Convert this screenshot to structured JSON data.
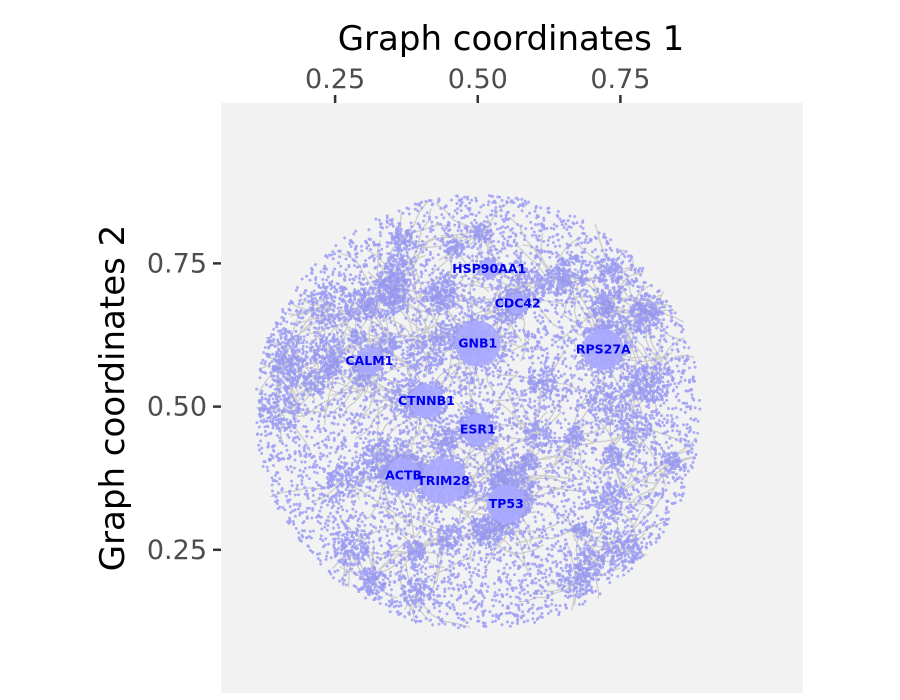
{
  "chart_data": {
    "type": "scatter",
    "title": "",
    "xlabel": "Graph coordinates 1",
    "ylabel": "Graph coordinates 2",
    "xlim": [
      0.05,
      1.07
    ],
    "ylim": [
      0.0,
      1.03
    ],
    "x_ticks": [
      {
        "value": 0.25,
        "label": "0.25"
      },
      {
        "value": 0.5,
        "label": "0.50"
      },
      {
        "value": 0.75,
        "label": "0.75"
      }
    ],
    "y_ticks": [
      {
        "value": 0.25,
        "label": "0.25"
      },
      {
        "value": 0.5,
        "label": "0.50"
      },
      {
        "value": 0.75,
        "label": "0.75"
      }
    ],
    "x_axis_position": "top",
    "grid": false,
    "panel_color": "#f2f2f2",
    "node_color": "#aaaaff",
    "edge_color": "#cccccc",
    "label_color": "#0000ee",
    "hub_nodes": [
      {
        "name": "GNB1",
        "x": 0.5,
        "y": 0.61,
        "size": 0.04
      },
      {
        "name": "HSP90AA1",
        "x": 0.52,
        "y": 0.74,
        "size": 0.016
      },
      {
        "name": "CDC42",
        "x": 0.57,
        "y": 0.68,
        "size": 0.018
      },
      {
        "name": "RPS27A",
        "x": 0.72,
        "y": 0.6,
        "size": 0.036
      },
      {
        "name": "CALM1",
        "x": 0.31,
        "y": 0.58,
        "size": 0.024
      },
      {
        "name": "CTNNB1",
        "x": 0.41,
        "y": 0.51,
        "size": 0.03
      },
      {
        "name": "ESR1",
        "x": 0.5,
        "y": 0.46,
        "size": 0.028
      },
      {
        "name": "ACTB",
        "x": 0.37,
        "y": 0.38,
        "size": 0.03
      },
      {
        "name": "TRIM28",
        "x": 0.44,
        "y": 0.37,
        "size": 0.04
      },
      {
        "name": "TP53",
        "x": 0.55,
        "y": 0.33,
        "size": 0.034
      }
    ],
    "node_cloud": {
      "center_x": 0.5,
      "center_y": 0.49,
      "radius_x": 0.39,
      "radius_y": 0.38
    }
  }
}
